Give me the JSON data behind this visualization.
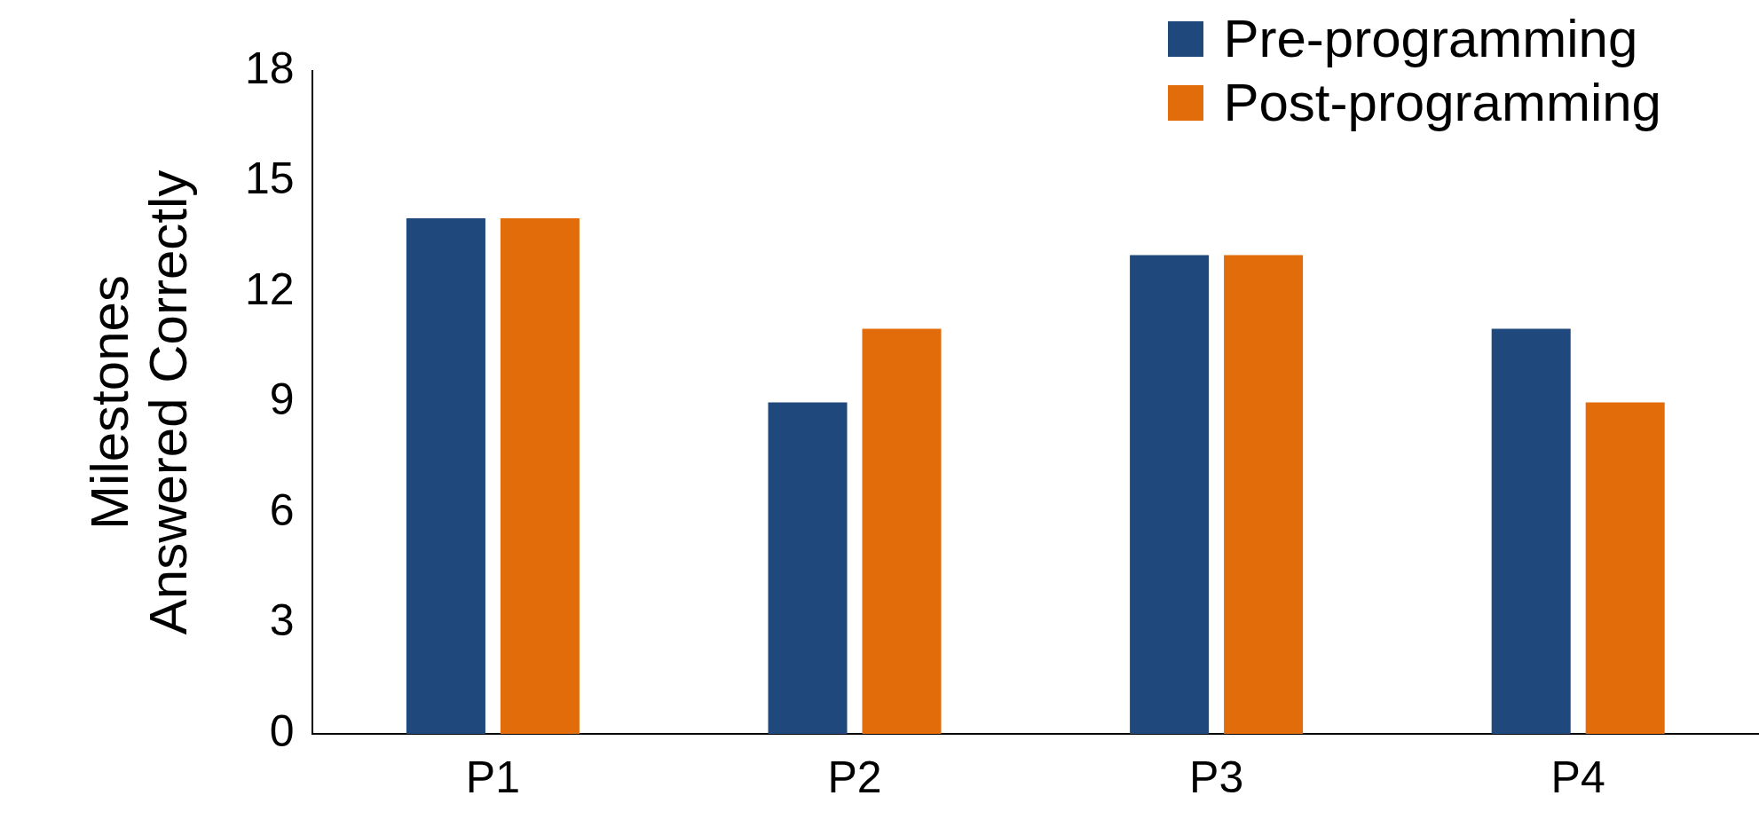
{
  "chart_data": {
    "type": "bar",
    "ylabel": "Milestones Answered Correctly",
    "categories": [
      "P1",
      "P2",
      "P3",
      "P4"
    ],
    "series": [
      {
        "name": "Pre-programming",
        "color": "#1f497d",
        "values": [
          14,
          9,
          13,
          11
        ]
      },
      {
        "name": "Post-programming",
        "color": "#e36c0a",
        "values": [
          14,
          11,
          13,
          9
        ]
      }
    ],
    "ylim": [
      0,
      18
    ],
    "yticks": [
      0,
      3,
      6,
      9,
      12,
      15,
      18
    ],
    "grid": false,
    "legend": "top right"
  }
}
